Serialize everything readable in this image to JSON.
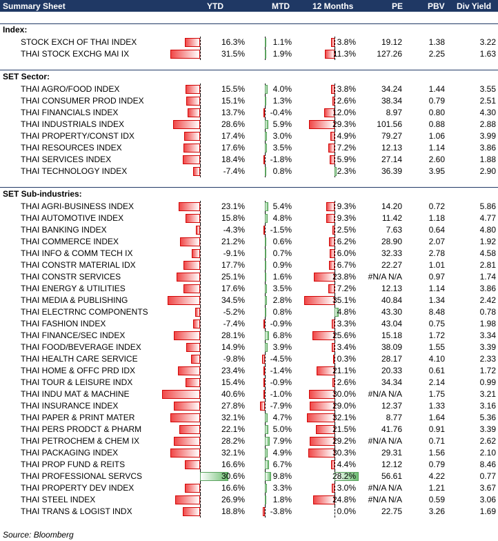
{
  "header": {
    "title": "Summary Sheet",
    "cols": [
      "YTD",
      "MTD",
      "12 Months",
      "PE",
      "PBV",
      "Div Yield"
    ]
  },
  "sections": [
    {
      "title": "Index:",
      "rows": [
        {
          "name": "STOCK EXCH OF THAI INDEX",
          "ytd": "16.3%",
          "mtd": "1.1%",
          "m12": "3.8%",
          "pe": "19.12",
          "pbv": "1.38",
          "dy": "3.22",
          "ytd_v": -16.3,
          "mtd_v": 1.1,
          "m12_v": -3.8
        },
        {
          "name": "THAI STOCK EXCHG MAI IX",
          "ytd": "31.5%",
          "mtd": "1.9%",
          "m12": "11.3%",
          "pe": "127.26",
          "pbv": "2.25",
          "dy": "1.63",
          "ytd_v": -31.5,
          "mtd_v": 1.9,
          "m12_v": -11.3
        }
      ]
    },
    {
      "title": "SET Sector:",
      "rows": [
        {
          "name": "THAI AGRO/FOOD INDEX",
          "ytd": "15.5%",
          "mtd": "4.0%",
          "m12": "3.8%",
          "pe": "34.24",
          "pbv": "1.44",
          "dy": "3.55",
          "ytd_v": -15.5,
          "mtd_v": 4.0,
          "m12_v": -3.8
        },
        {
          "name": "THAI CONSUMER PROD INDEX",
          "ytd": "15.1%",
          "mtd": "1.3%",
          "m12": "2.6%",
          "pe": "38.34",
          "pbv": "0.79",
          "dy": "2.51",
          "ytd_v": -15.1,
          "mtd_v": 1.3,
          "m12_v": -2.6
        },
        {
          "name": "THAI FINANCIALS INDEX",
          "ytd": "13.7%",
          "mtd": "-0.4%",
          "m12": "12.0%",
          "pe": "8.97",
          "pbv": "0.80",
          "dy": "4.30",
          "ytd_v": -13.7,
          "mtd_v": -0.4,
          "m12_v": -12.0
        },
        {
          "name": "THAI INDUSTRIALS INDEX",
          "ytd": "28.6%",
          "mtd": "5.9%",
          "m12": "29.3%",
          "pe": "101.56",
          "pbv": "0.88",
          "dy": "2.88",
          "ytd_v": -28.6,
          "mtd_v": 5.9,
          "m12_v": -29.3
        },
        {
          "name": "THAI PROPERTY/CONST IDX",
          "ytd": "17.4%",
          "mtd": "3.0%",
          "m12": "4.9%",
          "pe": "79.27",
          "pbv": "1.06",
          "dy": "3.99",
          "ytd_v": -17.4,
          "mtd_v": 3.0,
          "m12_v": -4.9
        },
        {
          "name": "THAI RESOURCES INDEX",
          "ytd": "17.6%",
          "mtd": "3.5%",
          "m12": "7.2%",
          "pe": "12.13",
          "pbv": "1.14",
          "dy": "3.86",
          "ytd_v": -17.6,
          "mtd_v": 3.5,
          "m12_v": -7.2
        },
        {
          "name": "THAI SERVICES INDEX",
          "ytd": "18.4%",
          "mtd": "-1.8%",
          "m12": "5.9%",
          "pe": "27.14",
          "pbv": "2.60",
          "dy": "1.88",
          "ytd_v": -18.4,
          "mtd_v": -1.8,
          "m12_v": -5.9
        },
        {
          "name": "THAI TECHNOLOGY INDEX",
          "ytd": "-7.4%",
          "mtd": "0.8%",
          "m12": "2.3%",
          "pe": "36.39",
          "pbv": "3.95",
          "dy": "2.90",
          "ytd_v": -7.4,
          "mtd_v": 0.8,
          "m12_v": 2.3
        }
      ]
    },
    {
      "title": "SET Sub-industries:",
      "rows": [
        {
          "name": "THAI AGRI-BUSINESS INDEX",
          "ytd": "23.1%",
          "mtd": "5.4%",
          "m12": "9.3%",
          "pe": "14.20",
          "pbv": "0.72",
          "dy": "5.86",
          "ytd_v": -23.1,
          "mtd_v": 5.4,
          "m12_v": -9.3
        },
        {
          "name": "THAI AUTOMOTIVE INDEX",
          "ytd": "15.8%",
          "mtd": "4.8%",
          "m12": "9.3%",
          "pe": "11.42",
          "pbv": "1.18",
          "dy": "4.77",
          "ytd_v": -15.8,
          "mtd_v": 4.8,
          "m12_v": -9.3
        },
        {
          "name": "THAI BANKING INDEX",
          "ytd": "-4.3%",
          "mtd": "-1.5%",
          "m12": "2.5%",
          "pe": "7.63",
          "pbv": "0.64",
          "dy": "4.80",
          "ytd_v": -4.3,
          "mtd_v": -1.5,
          "m12_v": -2.5
        },
        {
          "name": "THAI COMMERCE INDEX",
          "ytd": "21.2%",
          "mtd": "0.6%",
          "m12": "6.2%",
          "pe": "28.90",
          "pbv": "2.07",
          "dy": "1.92",
          "ytd_v": -21.2,
          "mtd_v": 0.6,
          "m12_v": -6.2
        },
        {
          "name": "THAI INFO & COMM TECH IX",
          "ytd": "-9.1%",
          "mtd": "0.7%",
          "m12": "6.0%",
          "pe": "32.33",
          "pbv": "2.78",
          "dy": "4.58",
          "ytd_v": -9.1,
          "mtd_v": 0.7,
          "m12_v": -6.0
        },
        {
          "name": "THAI CONSTR MATERIAL IDX",
          "ytd": "17.7%",
          "mtd": "0.9%",
          "m12": "6.7%",
          "pe": "22.27",
          "pbv": "1.01",
          "dy": "2.81",
          "ytd_v": -17.7,
          "mtd_v": 0.9,
          "m12_v": -6.7
        },
        {
          "name": "THAI CONSTR SERVICES",
          "ytd": "25.1%",
          "mtd": "1.6%",
          "m12": "23.8%",
          "pe": "#N/A N/A",
          "pbv": "0.97",
          "dy": "1.74",
          "ytd_v": -25.1,
          "mtd_v": 1.6,
          "m12_v": -23.8
        },
        {
          "name": "THAI ENERGY & UTILITIES",
          "ytd": "17.6%",
          "mtd": "3.5%",
          "m12": "7.2%",
          "pe": "12.13",
          "pbv": "1.14",
          "dy": "3.86",
          "ytd_v": -17.6,
          "mtd_v": 3.5,
          "m12_v": -7.2
        },
        {
          "name": "THAI MEDIA & PUBLISHING",
          "ytd": "34.5%",
          "mtd": "2.8%",
          "m12": "35.1%",
          "pe": "40.84",
          "pbv": "1.34",
          "dy": "2.42",
          "ytd_v": -34.5,
          "mtd_v": 2.8,
          "m12_v": -35.1
        },
        {
          "name": "THAI ELECTRNC COMPONENTS",
          "ytd": "-5.2%",
          "mtd": "0.8%",
          "m12": "4.8%",
          "pe": "43.30",
          "pbv": "8.48",
          "dy": "0.78",
          "ytd_v": -5.2,
          "mtd_v": 0.8,
          "m12_v": 4.8
        },
        {
          "name": "THAI FASHION INDEX",
          "ytd": "-7.4%",
          "mtd": "-0.9%",
          "m12": "3.3%",
          "pe": "43.04",
          "pbv": "0.75",
          "dy": "1.98",
          "ytd_v": -7.4,
          "mtd_v": -0.9,
          "m12_v": -3.3
        },
        {
          "name": "THAI FINANCE/SEC INDEX",
          "ytd": "28.1%",
          "mtd": "6.8%",
          "m12": "25.6%",
          "pe": "15.18",
          "pbv": "1.72",
          "dy": "3.34",
          "ytd_v": -28.1,
          "mtd_v": 6.8,
          "m12_v": -25.6
        },
        {
          "name": "THAI FOOD/BEVERAGE INDEX",
          "ytd": "14.9%",
          "mtd": "3.9%",
          "m12": "3.4%",
          "pe": "38.09",
          "pbv": "1.55",
          "dy": "3.39",
          "ytd_v": -14.9,
          "mtd_v": 3.9,
          "m12_v": -3.4
        },
        {
          "name": "THAI HEALTH CARE SERVICE",
          "ytd": "-9.8%",
          "mtd": "-4.5%",
          "m12": "0.3%",
          "pe": "28.17",
          "pbv": "4.10",
          "dy": "2.33",
          "ytd_v": -9.8,
          "mtd_v": -4.5,
          "m12_v": -0.3
        },
        {
          "name": "THAI HOME & OFFC PRD IDX",
          "ytd": "23.4%",
          "mtd": "-1.4%",
          "m12": "21.1%",
          "pe": "20.33",
          "pbv": "0.61",
          "dy": "1.72",
          "ytd_v": -23.4,
          "mtd_v": -1.4,
          "m12_v": -21.1
        },
        {
          "name": "THAI TOUR & LEISURE INDX",
          "ytd": "15.4%",
          "mtd": "-0.9%",
          "m12": "2.6%",
          "pe": "34.34",
          "pbv": "2.14",
          "dy": "0.99",
          "ytd_v": -15.4,
          "mtd_v": -0.9,
          "m12_v": -2.6
        },
        {
          "name": "THAI INDU MAT & MACHINE",
          "ytd": "40.6%",
          "mtd": "-1.0%",
          "m12": "30.0%",
          "pe": "#N/A N/A",
          "pbv": "1.75",
          "dy": "3.21",
          "ytd_v": -40.6,
          "mtd_v": -1.0,
          "m12_v": -30.0
        },
        {
          "name": "THAI INSURANCE INDEX",
          "ytd": "27.8%",
          "mtd": "-7.9%",
          "m12": "29.0%",
          "pe": "12.37",
          "pbv": "1.33",
          "dy": "3.16",
          "ytd_v": -27.8,
          "mtd_v": -7.9,
          "m12_v": -29.0
        },
        {
          "name": "THAI PAPER & PRINT MATER",
          "ytd": "32.1%",
          "mtd": "4.7%",
          "m12": "32.1%",
          "pe": "8.77",
          "pbv": "1.64",
          "dy": "5.36",
          "ytd_v": -32.1,
          "mtd_v": 4.7,
          "m12_v": -32.1
        },
        {
          "name": "THAI PERS PRODCT & PHARM",
          "ytd": "22.1%",
          "mtd": "5.0%",
          "m12": "21.5%",
          "pe": "41.76",
          "pbv": "0.91",
          "dy": "3.39",
          "ytd_v": -22.1,
          "mtd_v": 5.0,
          "m12_v": -21.5
        },
        {
          "name": "THAI PETROCHEM & CHEM IX",
          "ytd": "28.2%",
          "mtd": "7.9%",
          "m12": "29.2%",
          "pe": "#N/A N/A",
          "pbv": "0.71",
          "dy": "2.62",
          "ytd_v": -28.2,
          "mtd_v": 7.9,
          "m12_v": -29.2
        },
        {
          "name": "THAI PACKAGING INDEX",
          "ytd": "32.1%",
          "mtd": "4.9%",
          "m12": "30.3%",
          "pe": "29.31",
          "pbv": "1.56",
          "dy": "2.10",
          "ytd_v": -32.1,
          "mtd_v": 4.9,
          "m12_v": -30.3
        },
        {
          "name": "THAI PROP FUND & REITS",
          "ytd": "16.6%",
          "mtd": "6.7%",
          "m12": "4.4%",
          "pe": "12.12",
          "pbv": "0.79",
          "dy": "8.46",
          "ytd_v": -16.6,
          "mtd_v": 6.7,
          "m12_v": -4.4
        },
        {
          "name": "THAI PROFESSIONAL SERVCS",
          "ytd": "30.6%",
          "mtd": "9.8%",
          "m12": "28.2%",
          "pe": "56.61",
          "pbv": "4.22",
          "dy": "0.77",
          "ytd_v": 30.6,
          "mtd_v": 9.8,
          "m12_v": 28.2
        },
        {
          "name": "THAI PROPERTY DEV INDEX",
          "ytd": "16.6%",
          "mtd": "3.3%",
          "m12": "3.0%",
          "pe": "#N/A N/A",
          "pbv": "1.21",
          "dy": "3.67",
          "ytd_v": -16.6,
          "mtd_v": 3.3,
          "m12_v": -3.0
        },
        {
          "name": "THAI STEEL INDEX",
          "ytd": "26.9%",
          "mtd": "1.8%",
          "m12": "24.8%",
          "pe": "#N/A N/A",
          "pbv": "0.59",
          "dy": "3.06",
          "ytd_v": -26.9,
          "mtd_v": 1.8,
          "m12_v": -24.8
        },
        {
          "name": "THAI TRANS & LOGIST INDX",
          "ytd": "18.8%",
          "mtd": "-3.8%",
          "m12": "0.0%",
          "pe": "22.75",
          "pbv": "3.26",
          "dy": "1.69",
          "ytd_v": -18.8,
          "mtd_v": -3.8,
          "m12_v": 0.0
        }
      ]
    }
  ],
  "source": "Source: Bloomberg",
  "colors": {
    "header_bg": "#1f3864",
    "neg_bar": "#f04848",
    "pos_bar": "#6fbf73"
  }
}
